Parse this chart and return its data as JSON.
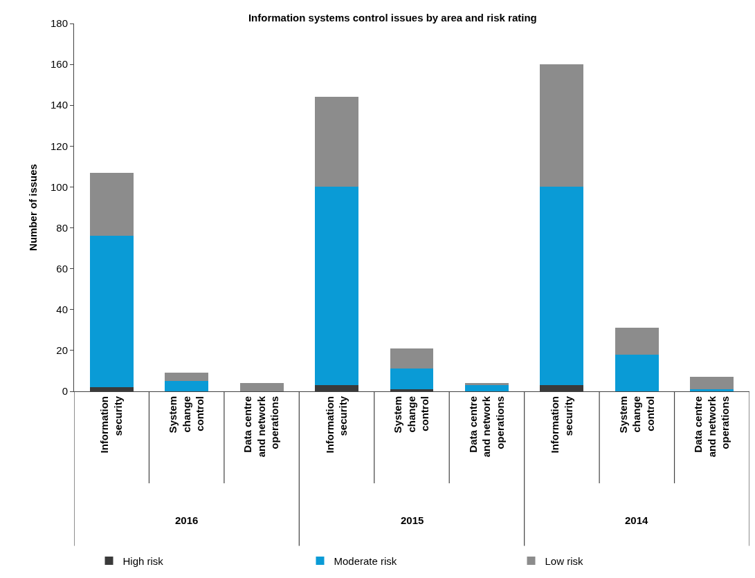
{
  "chart_data": {
    "type": "bar",
    "title": "Information systems control issues by area and risk rating",
    "ylabel": "Number of issues",
    "categories": [
      "Information security",
      "System change control",
      "Data centre and network operations",
      "Information security",
      "System change control",
      "Data centre and network operations",
      "Information security",
      "System change control",
      "Data centre and network operations"
    ],
    "annotations": [
      "2016",
      "2015",
      "2014"
    ],
    "stacked": true,
    "series": [
      {
        "name": "High risk",
        "color": "#3a3a3a",
        "values": [
          2,
          0,
          0,
          3,
          1,
          0,
          3,
          0,
          0
        ]
      },
      {
        "name": "Moderate risk",
        "color": "#0a9bd6",
        "values": [
          74,
          5,
          0,
          97,
          10,
          3,
          97,
          18,
          1
        ]
      },
      {
        "name": "Low risk",
        "color": "#8c8c8c",
        "values": [
          31,
          4,
          4,
          44,
          10,
          1,
          60,
          13,
          6
        ]
      }
    ],
    "ylim": [
      0,
      180
    ],
    "yticks": [
      0,
      20,
      40,
      60,
      80,
      100,
      120,
      140,
      160,
      180
    ],
    "legend": "bottom"
  }
}
